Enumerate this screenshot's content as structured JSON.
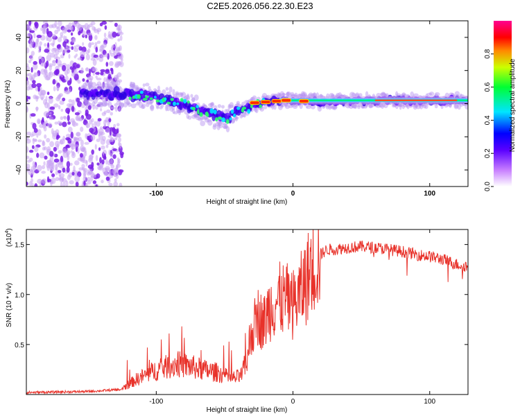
{
  "title": "C2E5.2026.056.22.30.E23",
  "colors": {
    "trace": "#e8322a",
    "spectro_violet": "#7a2cf0",
    "spectro_light": "#d9b8f5"
  },
  "chart_data": [
    {
      "type": "heatmap",
      "name": "spectrogram",
      "xlabel": "Height of straight line (km)",
      "ylabel": "Frequency (Hz)",
      "xlim": [
        -195,
        128
      ],
      "ylim": [
        -50,
        50
      ],
      "xticks": [
        -100,
        0,
        100
      ],
      "yticks": [
        -40,
        -20,
        0,
        20,
        40
      ],
      "colorbar": {
        "label": "Normalized spectral amplitude",
        "range": [
          0,
          1
        ],
        "ticks": [
          "0.0",
          "0.2",
          "0.4",
          "0.6",
          "0.8"
        ],
        "tick_values": [
          0.0,
          0.2,
          0.4,
          0.6,
          0.8
        ],
        "stops": [
          "#ffffff",
          "#8a2be2",
          "#0000ff",
          "#00ffff",
          "#00ff00",
          "#ffff00",
          "#ff0000",
          "#ff00ff"
        ]
      },
      "ridge": {
        "x": [
          -155,
          -130,
          -110,
          -90,
          -75,
          -60,
          -48,
          -42,
          -35,
          -28,
          -20,
          -10,
          0,
          20,
          60,
          100,
          128
        ],
        "freq": [
          6,
          6,
          5,
          2,
          -2,
          -7,
          -9,
          -5,
          -3,
          0,
          1,
          2,
          2,
          1,
          2,
          2,
          2
        ]
      },
      "noise_region_x": [
        -195,
        -125
      ]
    },
    {
      "type": "line",
      "name": "snr",
      "xlabel": "Height of straight line (km)",
      "ylabel": "SNR (10 * v/v)",
      "yscale_label": "(x10",
      "yscale_exp": "4",
      "xlim": [
        -195,
        128
      ],
      "ylim": [
        0,
        16500
      ],
      "xticks": [
        -100,
        0,
        100
      ],
      "yticks": [
        5000,
        10000,
        15000
      ],
      "ytick_labels": [
        "0.5",
        "1.0",
        "1.5"
      ],
      "series": [
        {
          "name": "SNR",
          "x": [
            -195,
            -150,
            -125,
            -115,
            -100,
            -85,
            -75,
            -65,
            -55,
            -45,
            -38,
            -33,
            -30,
            -28,
            -25,
            -22,
            -20,
            -18,
            -15,
            -10,
            -5,
            0,
            5,
            10,
            15,
            20,
            25,
            30,
            40,
            50,
            60,
            70,
            80,
            90,
            100,
            110,
            120,
            128
          ],
          "y": [
            200,
            300,
            500,
            1200,
            2000,
            2500,
            2300,
            2000,
            1800,
            1300,
            1500,
            3000,
            6000,
            7000,
            8000,
            7000,
            7500,
            8500,
            9000,
            9500,
            9500,
            9000,
            10000,
            11500,
            13000,
            14000,
            14500,
            14500,
            14700,
            14800,
            14700,
            14500,
            14300,
            14000,
            13800,
            13500,
            13000,
            12800
          ]
        }
      ]
    }
  ]
}
